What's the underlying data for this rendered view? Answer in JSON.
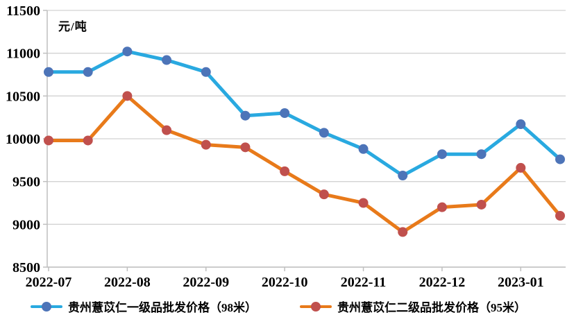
{
  "chart_data": {
    "type": "line",
    "title": "",
    "unit_label": "元/吨",
    "xlabel": "",
    "ylabel": "元/吨",
    "ylim": [
      8500,
      11500
    ],
    "grid": true,
    "legend_position": "bottom",
    "y_ticks": [
      11500,
      11000,
      10500,
      10000,
      9500,
      9000,
      8500
    ],
    "x_tick_labels": [
      "2022-07",
      "2022-08",
      "2022-09",
      "2022-10",
      "2022-11",
      "2022-12",
      "2023-01"
    ],
    "categories": [
      "2022-07-01",
      "2022-07-15",
      "2022-08-01",
      "2022-08-15",
      "2022-09-01",
      "2022-09-15",
      "2022-10-01",
      "2022-10-15",
      "2022-11-01",
      "2022-11-15",
      "2022-12-01",
      "2022-12-15",
      "2023-01-01",
      "2023-01-15"
    ],
    "series": [
      {
        "name": "贵州薏苡仁一级品批发价格（98米）",
        "line_color": "#29A9E0",
        "marker_color": "#4D74B8",
        "values": [
          10780,
          10780,
          11020,
          10920,
          10780,
          10270,
          10300,
          10070,
          9880,
          9570,
          9820,
          9820,
          10170,
          9760
        ]
      },
      {
        "name": "贵州薏苡仁二级品批发价格（95米）",
        "line_color": "#E87A1A",
        "marker_color": "#C0504D",
        "values": [
          9980,
          9980,
          10500,
          10100,
          9930,
          9900,
          9620,
          9350,
          9250,
          8910,
          9200,
          9230,
          9660,
          9100
        ]
      }
    ]
  },
  "style": {
    "grid_color": "#D2D2D2",
    "axis_color": "#BFBFBF",
    "text_color": "#000000"
  }
}
